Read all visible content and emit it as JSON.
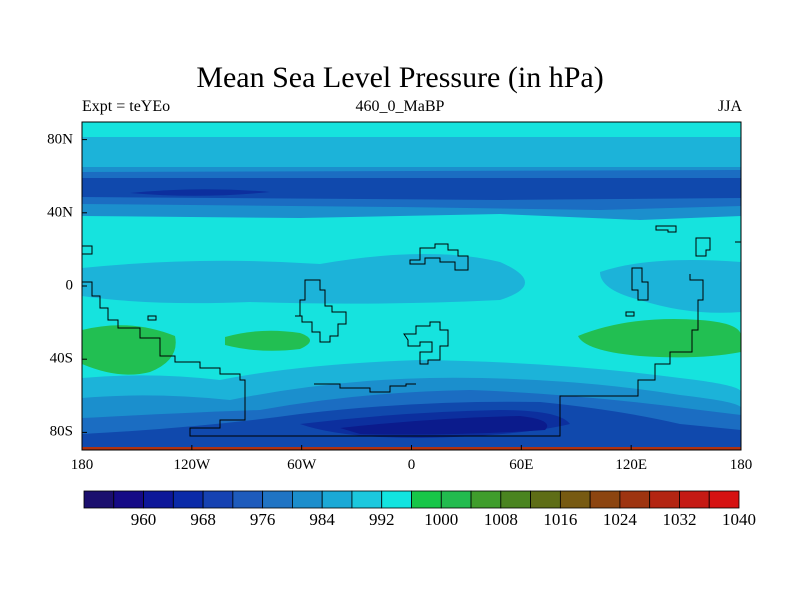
{
  "title": "Mean Sea Level Pressure (in hPa)",
  "experiment_label": "Expt = teYEo",
  "center_label": "460_0_MaBP",
  "season_label": "JJA",
  "colors": {
    "background": "#ffffff",
    "frame": "#000000"
  },
  "lon_axis": {
    "ticks": [
      {
        "label": "180",
        "lon": -180
      },
      {
        "label": "120W",
        "lon": -120
      },
      {
        "label": "60W",
        "lon": -60
      },
      {
        "label": "0",
        "lon": 0
      },
      {
        "label": "60E",
        "lon": 60
      },
      {
        "label": "120E",
        "lon": 120
      },
      {
        "label": "180",
        "lon": 180
      }
    ]
  },
  "lat_axis": {
    "ticks": [
      {
        "label": "80N",
        "lat": 80
      },
      {
        "label": "40N",
        "lat": 40
      },
      {
        "label": "0",
        "lat": 0
      },
      {
        "label": "40S",
        "lat": -40
      },
      {
        "label": "80S",
        "lat": -80
      }
    ]
  },
  "colorbar": {
    "colors": [
      "#1b0f6e",
      "#150a86",
      "#0d1799",
      "#0a2aa8",
      "#1642b2",
      "#1e5bbc",
      "#2074c4",
      "#1c8ecc",
      "#1ba9d6",
      "#1cc8de",
      "#12e4e0",
      "#17c648",
      "#22bb4e",
      "#3f9d2c",
      "#4a8420",
      "#5e6d16",
      "#775a12",
      "#8c4510",
      "#9e3410",
      "#b32512",
      "#c51a14",
      "#d51212"
    ],
    "labels": [
      {
        "text": "960",
        "index": 2
      },
      {
        "text": "968",
        "index": 4
      },
      {
        "text": "976",
        "index": 6
      },
      {
        "text": "984",
        "index": 8
      },
      {
        "text": "992",
        "index": 10
      },
      {
        "text": "1000",
        "index": 12
      },
      {
        "text": "1008",
        "index": 14
      },
      {
        "text": "1016",
        "index": 16
      },
      {
        "text": "1024",
        "index": 18
      },
      {
        "text": "1032",
        "index": 20
      },
      {
        "text": "1040",
        "index": 22
      }
    ]
  },
  "field_colors": {
    "cyan": "#16e3de",
    "light_blue": "#1cb3d9",
    "mid_blue": "#1b8fcd",
    "blue": "#1b6dc2",
    "dark_blue": "#1049ad",
    "deep_blue": "#0c2f9e",
    "darkest_blue": "#0b1b8c",
    "green": "#22bf52"
  }
}
